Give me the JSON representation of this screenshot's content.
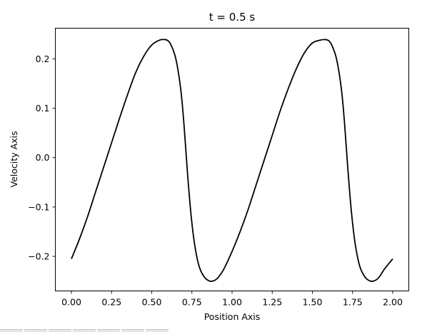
{
  "chart_data": {
    "type": "line",
    "title": "t = 0.5 s",
    "xlabel": "Position Axis",
    "ylabel": "Velocity Axis",
    "xlim": [
      -0.1,
      2.1
    ],
    "ylim": [
      -0.27,
      0.262
    ],
    "xticks": [
      0.0,
      0.25,
      0.5,
      0.75,
      1.0,
      1.25,
      1.5,
      1.75,
      2.0
    ],
    "xtick_labels": [
      "0.00",
      "0.25",
      "0.50",
      "0.75",
      "1.00",
      "1.25",
      "1.50",
      "1.75",
      "2.00"
    ],
    "yticks": [
      -0.2,
      -0.1,
      0.0,
      0.1,
      0.2
    ],
    "ytick_labels": [
      "−0.2",
      "−0.1",
      "0.0",
      "0.1",
      "0.2"
    ],
    "grid": false,
    "series": [
      {
        "color": "#000000",
        "x": [
          0.0,
          0.05,
          0.1,
          0.15,
          0.2,
          0.25,
          0.3,
          0.35,
          0.4,
          0.45,
          0.5,
          0.55,
          0.58,
          0.6,
          0.62,
          0.65,
          0.68,
          0.7,
          0.72,
          0.74,
          0.76,
          0.78,
          0.8,
          0.83,
          0.86,
          0.88,
          0.9,
          0.92,
          0.95,
          1.0,
          1.05,
          1.1,
          1.15,
          1.2,
          1.25,
          1.3,
          1.35,
          1.4,
          1.45,
          1.5,
          1.55,
          1.58,
          1.6,
          1.62,
          1.65,
          1.68,
          1.7,
          1.72,
          1.74,
          1.76,
          1.78,
          1.8,
          1.83,
          1.86,
          1.88,
          1.9,
          1.92,
          1.95,
          2.0
        ],
        "y": [
          -0.205,
          -0.165,
          -0.12,
          -0.07,
          -0.02,
          0.03,
          0.08,
          0.128,
          0.172,
          0.205,
          0.228,
          0.238,
          0.239,
          0.237,
          0.228,
          0.2,
          0.14,
          0.07,
          -0.02,
          -0.1,
          -0.16,
          -0.2,
          -0.225,
          -0.243,
          -0.25,
          -0.25,
          -0.247,
          -0.24,
          -0.225,
          -0.19,
          -0.15,
          -0.105,
          -0.055,
          -0.005,
          0.045,
          0.095,
          0.14,
          0.18,
          0.212,
          0.232,
          0.238,
          0.239,
          0.237,
          0.228,
          0.2,
          0.14,
          0.07,
          -0.02,
          -0.1,
          -0.16,
          -0.2,
          -0.225,
          -0.243,
          -0.25,
          -0.25,
          -0.247,
          -0.24,
          -0.225,
          -0.205
        ]
      }
    ]
  }
}
